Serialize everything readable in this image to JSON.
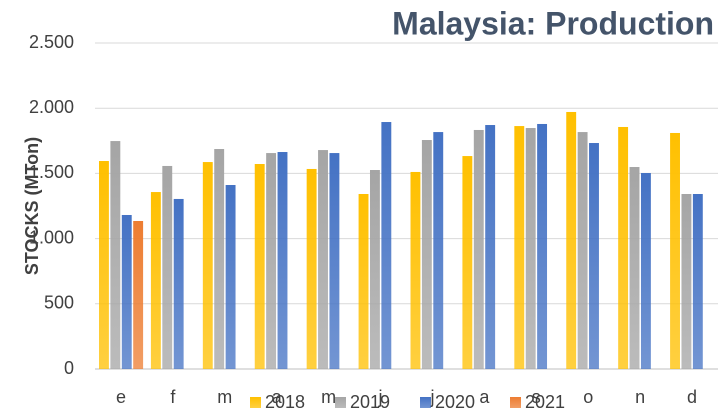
{
  "chart_data": {
    "type": "bar",
    "title": "Malaysia: Production",
    "y_label": "STOCKS (MTon)",
    "categories": [
      "e",
      "f",
      "m",
      "a",
      "m",
      "j",
      "j",
      "a",
      "s",
      "o",
      "n",
      "d"
    ],
    "series": [
      {
        "name": "2018",
        "color": "#ffc000",
        "values": [
          1595,
          1357,
          1587,
          1572,
          1534,
          1342,
          1511,
          1633,
          1863,
          1971,
          1856,
          1810
        ]
      },
      {
        "name": "2019",
        "color": "#a5a5a5",
        "values": [
          1748,
          1557,
          1687,
          1656,
          1679,
          1526,
          1756,
          1833,
          1848,
          1817,
          1549,
          1342
        ]
      },
      {
        "name": "2020",
        "color": "#4472c4",
        "values": [
          1181,
          1304,
          1411,
          1664,
          1656,
          1894,
          1817,
          1871,
          1879,
          1733,
          1503,
          1342
        ]
      },
      {
        "name": "2021",
        "color": "#ed7d31",
        "values": [
          1135,
          null,
          null,
          null,
          null,
          null,
          null,
          null,
          null,
          null,
          null,
          null
        ]
      }
    ],
    "ylim": [
      0,
      2500
    ],
    "yticks": [
      0,
      500,
      {
        "value": 1000,
        "label": "1.000"
      },
      {
        "value": 1500,
        "label": "1.500"
      },
      {
        "value": 2000,
        "label": "2.000"
      },
      {
        "value": 2500,
        "label": "2.500"
      }
    ],
    "grid": true,
    "legend": "bottom"
  }
}
